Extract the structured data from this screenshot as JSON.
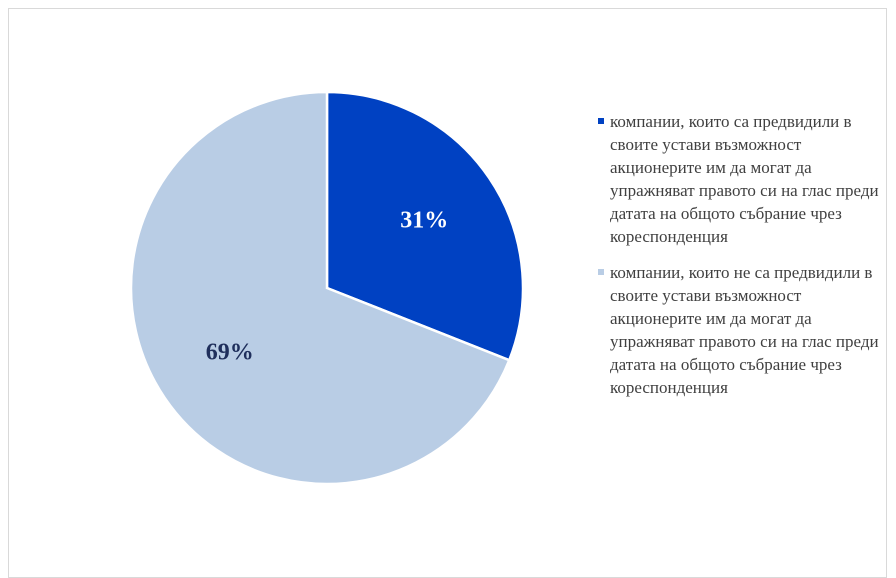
{
  "chart_data": {
    "type": "pie",
    "categories": [
      "компании, които са предвидили в своите устави възможност акционерите им да могат да упражняват правото си на глас преди датата на общото събрание чрез кореспонденция",
      "компании, които не са предвидили в своите устави възможност акционерите им да могат да упражняват правото си на глас преди датата на общото събрание чрез кореспонденция"
    ],
    "values": [
      31,
      69
    ],
    "value_labels": [
      "31%",
      "69%"
    ],
    "colors": [
      "#0041c2",
      "#b9cde5"
    ],
    "label_colors": [
      "#ffffff",
      "#1f2f5c"
    ],
    "legend": "right"
  }
}
